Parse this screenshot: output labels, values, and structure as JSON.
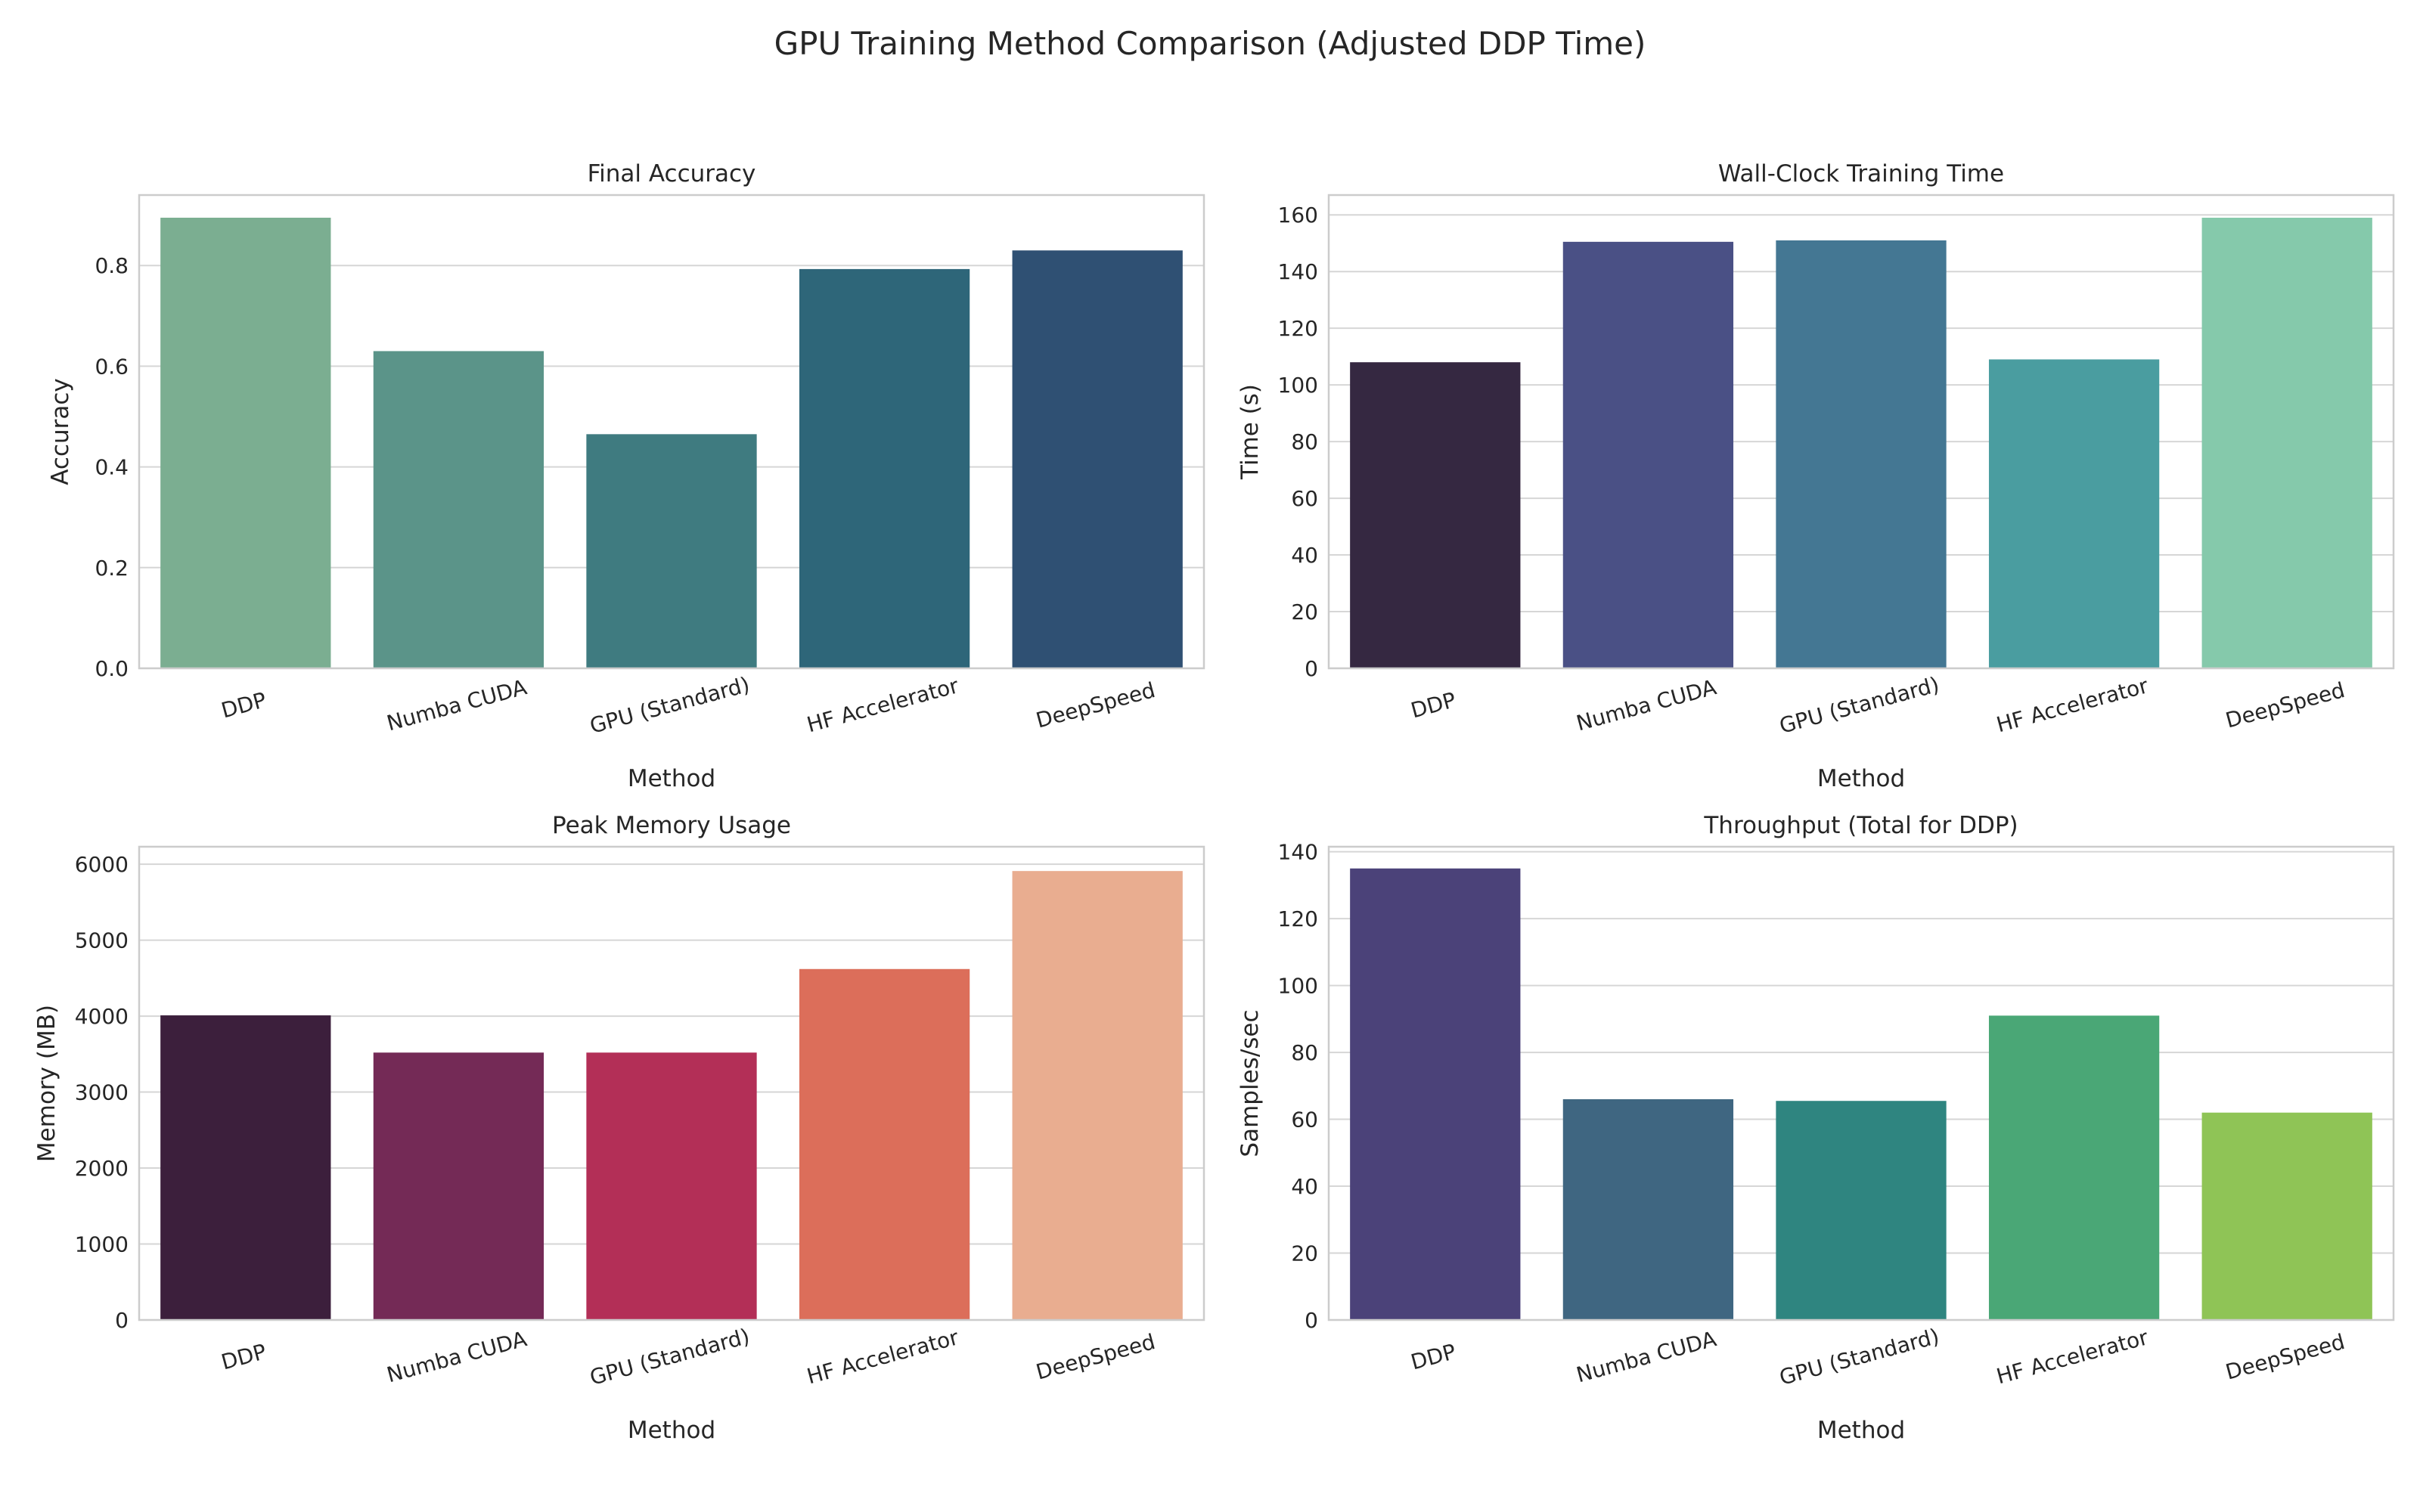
{
  "suptitle": "GPU Training Method Comparison (Adjusted DDP Time)",
  "chart_data": [
    {
      "type": "bar",
      "title": "Final Accuracy",
      "xlabel": "Method",
      "ylabel": "Accuracy",
      "categories": [
        "DDP",
        "Numba CUDA",
        "GPU (Standard)",
        "HF Accelerator",
        "DeepSpeed"
      ],
      "values": [
        0.895,
        0.63,
        0.465,
        0.793,
        0.83
      ],
      "ylim": [
        0,
        0.94
      ],
      "yticks": [
        0.0,
        0.2,
        0.4,
        0.6,
        0.8
      ],
      "tick_decimals": 1,
      "colors": [
        "#7bae91",
        "#5b9489",
        "#3f7b80",
        "#2e6679",
        "#2f5073"
      ],
      "grid": true
    },
    {
      "type": "bar",
      "title": "Wall-Clock Training Time",
      "xlabel": "Method",
      "ylabel": "Time (s)",
      "categories": [
        "DDP",
        "Numba CUDA",
        "GPU (Standard)",
        "HF Accelerator",
        "DeepSpeed"
      ],
      "values": [
        108,
        150.5,
        151,
        109,
        159
      ],
      "ylim": [
        0,
        167
      ],
      "yticks": [
        0,
        20,
        40,
        60,
        80,
        100,
        120,
        140,
        160
      ],
      "tick_decimals": 0,
      "colors": [
        "#352841",
        "#4a5085",
        "#447793",
        "#4a9da0",
        "#85c9ab"
      ],
      "grid": true
    },
    {
      "type": "bar",
      "title": "Peak Memory Usage",
      "xlabel": "Method",
      "ylabel": "Memory (MB)",
      "categories": [
        "DDP",
        "Numba CUDA",
        "GPU (Standard)",
        "HF Accelerator",
        "DeepSpeed"
      ],
      "values": [
        4010,
        3520,
        3520,
        4620,
        5910
      ],
      "ylim": [
        0,
        6230
      ],
      "yticks": [
        0,
        1000,
        2000,
        3000,
        4000,
        5000,
        6000
      ],
      "tick_decimals": 0,
      "colors": [
        "#3c1f3c",
        "#742a56",
        "#b32f57",
        "#dc6e5a",
        "#e9ad90"
      ],
      "grid": true
    },
    {
      "type": "bar",
      "title": "Throughput (Total for DDP)",
      "xlabel": "Method",
      "ylabel": "Samples/sec",
      "categories": [
        "DDP",
        "Numba CUDA",
        "GPU (Standard)",
        "HF Accelerator",
        "DeepSpeed"
      ],
      "values": [
        135,
        66,
        65.5,
        91,
        62
      ],
      "ylim": [
        0,
        141.5
      ],
      "yticks": [
        0,
        20,
        40,
        60,
        80,
        100,
        120,
        140
      ],
      "tick_decimals": 0,
      "colors": [
        "#4b4279",
        "#3f6681",
        "#2f8580",
        "#4aa776",
        "#8fc456"
      ],
      "grid": true
    }
  ]
}
